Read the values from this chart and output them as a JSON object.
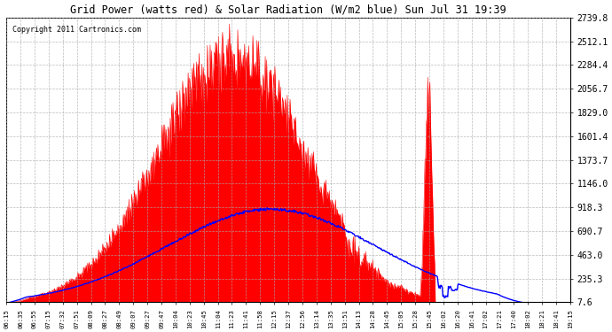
{
  "title": "Grid Power (watts red) & Solar Radiation (W/m2 blue) Sun Jul 31 19:39",
  "copyright": "Copyright 2011 Cartronics.com",
  "background_color": "#ffffff",
  "plot_bg_color": "#ffffff",
  "grid_color": "#aaaaaa",
  "red_fill_color": "#ff0000",
  "blue_line_color": "#0000ff",
  "yticks": [
    7.6,
    235.3,
    463.0,
    690.7,
    918.3,
    1146.0,
    1373.7,
    1601.4,
    1829.0,
    2056.7,
    2284.4,
    2512.1,
    2739.8
  ],
  "ymin": 7.6,
  "ymax": 2739.8,
  "x_labels": [
    "06:15",
    "06:35",
    "06:55",
    "07:15",
    "07:32",
    "07:51",
    "08:09",
    "08:27",
    "08:49",
    "09:07",
    "09:27",
    "09:47",
    "10:04",
    "10:23",
    "10:45",
    "11:04",
    "11:23",
    "11:41",
    "11:58",
    "12:15",
    "12:37",
    "12:56",
    "13:14",
    "13:35",
    "13:51",
    "14:13",
    "14:28",
    "14:45",
    "15:05",
    "15:28",
    "15:45",
    "16:02",
    "16:20",
    "16:41",
    "17:02",
    "17:21",
    "17:40",
    "18:02",
    "18:21",
    "18:41",
    "19:15"
  ]
}
